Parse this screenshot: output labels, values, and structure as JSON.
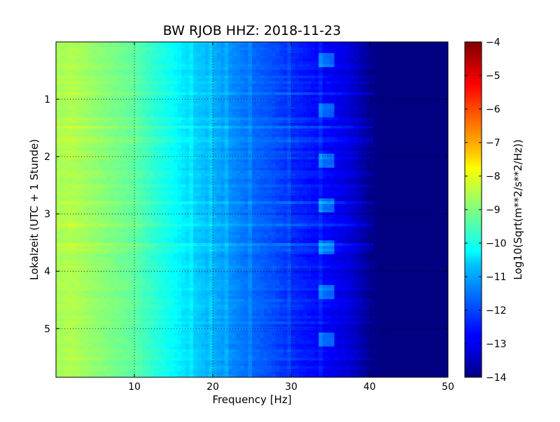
{
  "chart_data": {
    "type": "heatmap",
    "title": "BW RJOB HHZ: 2018-11-23",
    "xlabel": "Frequency [Hz]",
    "ylabel": "Lokalzeit (UTC + 1 Stunde)",
    "colorbar_label": "Log10(Sqrt(m**2/s**2/Hz))",
    "xlim": [
      0,
      50
    ],
    "ylim": [
      5.85,
      0
    ],
    "xticks": [
      10,
      20,
      30,
      40,
      50
    ],
    "yticks": [
      1,
      2,
      3,
      4,
      5
    ],
    "colorbar_range": [
      -14,
      -4
    ],
    "colorbar_ticks": [
      -14,
      -13,
      -12,
      -11,
      -10,
      -9,
      -8,
      -7,
      -6,
      -5,
      -4
    ],
    "colormap": "jet",
    "grid": true,
    "spectrum_profile": {
      "frequency_hz": [
        0,
        2,
        5,
        8,
        10,
        12,
        15,
        17,
        20,
        22,
        25,
        28,
        30,
        33,
        35,
        37,
        38,
        39,
        40,
        41,
        42,
        45,
        50
      ],
      "log10_amplitude": [
        -8.6,
        -8.5,
        -8.8,
        -9.1,
        -9.3,
        -9.7,
        -10.2,
        -10.6,
        -11.0,
        -11.3,
        -11.7,
        -12.0,
        -12.3,
        -12.6,
        -12.8,
        -13.0,
        -13.2,
        -13.5,
        -13.75,
        -13.95,
        -14.0,
        -14.0,
        -14.0
      ]
    },
    "tonal_lines_hz": [
      17.3,
      19.9,
      21.6,
      24.9,
      29.6,
      33.8
    ],
    "burst_times_h": [
      0.3,
      1.2,
      2.05,
      2.85,
      3.6,
      4.35,
      5.2
    ]
  }
}
